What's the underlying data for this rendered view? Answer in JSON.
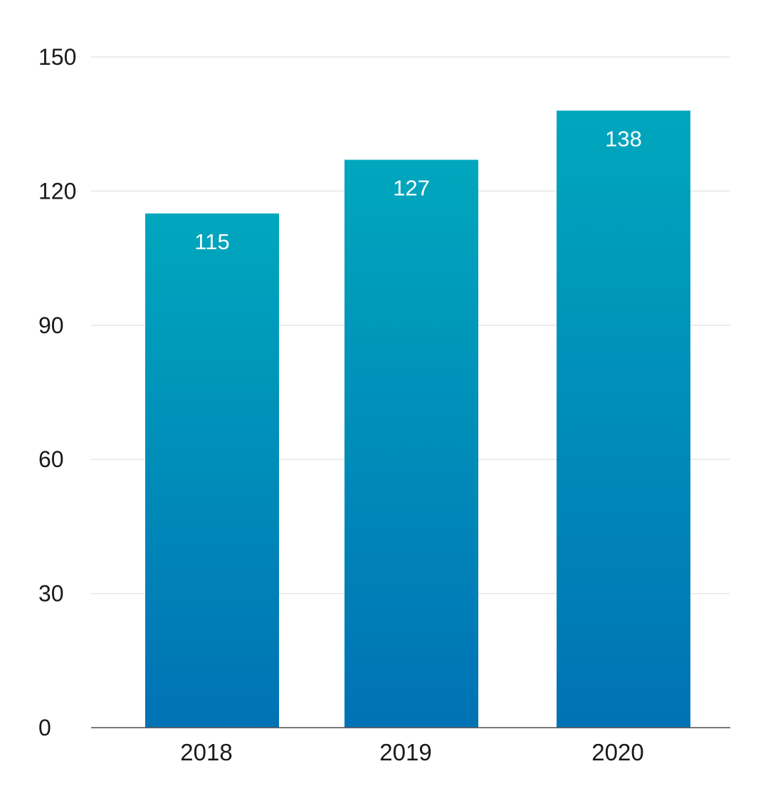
{
  "chart_data": {
    "type": "bar",
    "categories": [
      "2018",
      "2019",
      "2020"
    ],
    "values": [
      115,
      127,
      138
    ],
    "data_labels": [
      "115",
      "127",
      "138"
    ],
    "ylim": [
      0,
      150
    ],
    "yticks": [
      "0",
      "30",
      "60",
      "90",
      "120",
      "150"
    ],
    "grid": true,
    "title": "",
    "xlabel": "",
    "ylabel": "",
    "colors": {
      "bar_top": "#00a7bd",
      "bar_bottom": "#0072b5",
      "grid": "#e6e6e6",
      "axis": "#4d4d4d"
    }
  }
}
